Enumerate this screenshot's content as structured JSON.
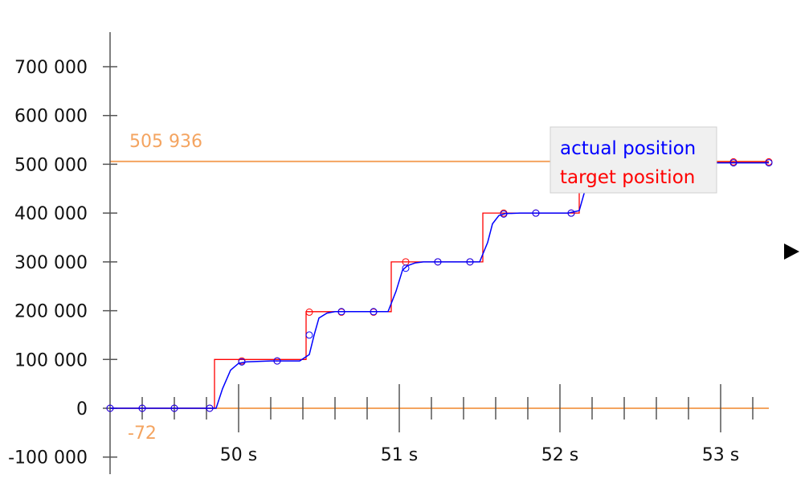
{
  "chart_data": {
    "type": "line",
    "title": "",
    "xlabel": "",
    "ylabel": "",
    "xlim": [
      49.2,
      53.3
    ],
    "ylim": [
      -110000,
      770000
    ],
    "x_ticks": [
      {
        "value": 50,
        "label": "50 s"
      },
      {
        "value": 51,
        "label": "51 s"
      },
      {
        "value": 52,
        "label": "52 s"
      },
      {
        "value": 53,
        "label": "53 s"
      }
    ],
    "x_minor_ticks": [
      49.4,
      49.6,
      49.8,
      50.2,
      50.4,
      50.6,
      50.8,
      51.2,
      51.4,
      51.6,
      51.8,
      52.2,
      52.4,
      52.6,
      52.8,
      53.2
    ],
    "y_ticks": [
      {
        "value": 700000,
        "label": "700 000"
      },
      {
        "value": 600000,
        "label": "600 000"
      },
      {
        "value": 500000,
        "label": "500 000"
      },
      {
        "value": 400000,
        "label": "400 000"
      },
      {
        "value": 300000,
        "label": "300 000"
      },
      {
        "value": 200000,
        "label": "200 000"
      },
      {
        "value": 100000,
        "label": "100 000"
      },
      {
        "value": 0,
        "label": "0"
      },
      {
        "value": -100000,
        "label": "-100 000"
      }
    ],
    "reference_lines": [
      {
        "value": 505936,
        "label": "505 936",
        "color": "#f4a460"
      },
      {
        "value": 0,
        "label": "-72",
        "color": "#f4a460"
      }
    ],
    "legend": {
      "placement": "top-right"
    },
    "series": [
      {
        "name": "target position",
        "color": "#ff0000",
        "step": true,
        "x": [
          49.2,
          49.85,
          49.85,
          50.42,
          50.42,
          50.95,
          50.95,
          51.52,
          51.52,
          52.12,
          52.12,
          53.3
        ],
        "y": [
          0,
          0,
          100000,
          100000,
          198000,
          198000,
          300000,
          300000,
          400000,
          400000,
          505000,
          505000
        ],
        "markers_x": [
          49.2,
          49.4,
          49.6,
          49.82,
          50.02,
          50.24,
          50.44,
          50.64,
          50.84,
          51.04,
          51.24,
          51.44,
          51.65,
          51.85,
          52.07,
          52.28,
          52.48,
          52.68,
          52.88,
          53.08,
          53.3
        ],
        "markers_y": [
          0,
          0,
          0,
          0,
          97000,
          97000,
          197000,
          197000,
          197000,
          300000,
          300000,
          300000,
          400000,
          400000,
          400000,
          505000,
          505000,
          505000,
          505000,
          505000,
          505000
        ]
      },
      {
        "name": "actual position",
        "color": "#0000ff",
        "step": false,
        "x": [
          49.2,
          49.86,
          49.9,
          49.95,
          50.0,
          50.05,
          50.2,
          50.38,
          50.44,
          50.47,
          50.5,
          50.55,
          50.6,
          50.75,
          50.93,
          50.98,
          51.02,
          51.05,
          51.1,
          51.15,
          51.3,
          51.5,
          51.55,
          51.58,
          51.62,
          51.66,
          51.75,
          52.05,
          52.12,
          52.15,
          52.18,
          52.22,
          52.28,
          52.5,
          53.3
        ],
        "y": [
          0,
          0,
          40000,
          78000,
          92000,
          95000,
          97000,
          97000,
          110000,
          150000,
          185000,
          195000,
          198000,
          198000,
          198000,
          240000,
          283000,
          292000,
          298000,
          300000,
          300000,
          300000,
          340000,
          378000,
          395000,
          399000,
          400000,
          400000,
          405000,
          440000,
          480000,
          498000,
          503000,
          503000,
          503000
        ],
        "markers_x": [
          49.2,
          49.4,
          49.6,
          49.82,
          50.02,
          50.24,
          50.44,
          50.64,
          50.84,
          51.04,
          51.24,
          51.44,
          51.65,
          51.85,
          52.07,
          52.28,
          52.48,
          52.68,
          52.88,
          53.08,
          53.3
        ],
        "markers_y": [
          0,
          0,
          0,
          0,
          95000,
          97000,
          150000,
          198000,
          198000,
          287000,
          300000,
          300000,
          398000,
          400000,
          400000,
          503000,
          503000,
          503000,
          503000,
          503000,
          503000
        ]
      }
    ]
  },
  "legend_items": [
    "actual position",
    "target position"
  ],
  "colors": {
    "axis": "#555555",
    "reference": "#f4a460",
    "legend_background": "#f0f0f0",
    "legend_border": "#d0d0d0"
  },
  "icons": {
    "play": "play-triangle-icon"
  }
}
